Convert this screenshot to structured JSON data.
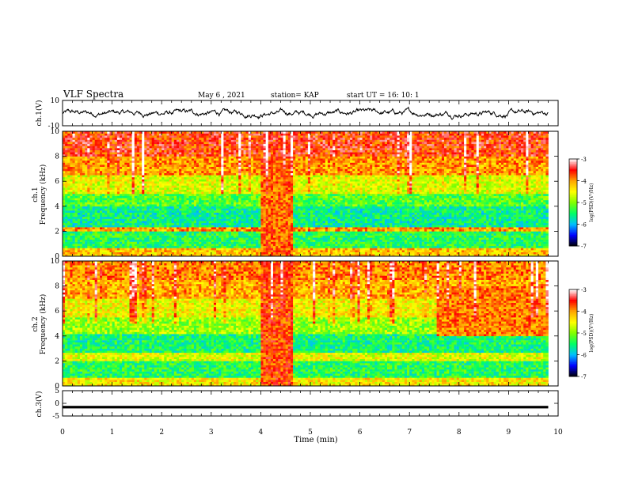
{
  "header": {
    "title": "VLF Spectra",
    "date": "May 6 , 2021",
    "station": "station= KAP",
    "start": "start UT =  16: 10: 1"
  },
  "colorbars": {
    "label": "log(PSD)(V²/Hz)",
    "ticks": [
      "-3",
      "-4",
      "-5",
      "-6",
      "-7"
    ],
    "colors": [
      "#000000",
      "#0000ff",
      "#00bfff",
      "#00ff66",
      "#7fff00",
      "#ffff00",
      "#ffa500",
      "#ff0000",
      "#ffffff"
    ]
  },
  "chart_data": [
    {
      "type": "line",
      "panel": "ch1-waveform",
      "ylabel": "ch.1(V)",
      "ylim": [
        -10,
        10
      ],
      "yticks": [
        "10",
        "-10"
      ],
      "xlim": [
        0,
        10
      ],
      "note_values": "noisy waveform fluctuating roughly between -6 and +6 V"
    },
    {
      "type": "heatmap",
      "panel": "ch1-spectrogram",
      "ylabel": "ch.1 Frequency (kHz)",
      "ylim": [
        0,
        10
      ],
      "yticks": [
        "0",
        "2",
        "4",
        "6",
        "8",
        "10"
      ],
      "xlim": [
        0,
        10
      ],
      "data_end_min": 9.8,
      "zlim": [
        -7,
        -3
      ],
      "bands": [
        {
          "f": [
            0,
            0.6
          ],
          "level": -4.2
        },
        {
          "f": [
            0.6,
            2.0
          ],
          "level": -5.4
        },
        {
          "f": [
            2.0,
            2.4
          ],
          "level": -4.0
        },
        {
          "f": [
            2.4,
            4.0
          ],
          "level": -5.6
        },
        {
          "f": [
            4.0,
            5.0
          ],
          "level": -5.2
        },
        {
          "f": [
            5.0,
            6.5
          ],
          "level": -4.6
        },
        {
          "f": [
            6.5,
            8.0
          ],
          "level": -4.0
        },
        {
          "f": [
            8.0,
            10.0
          ],
          "level": -3.6
        }
      ],
      "events": [
        {
          "t": [
            3.95,
            4.6
          ],
          "level": -3.8
        }
      ]
    },
    {
      "type": "heatmap",
      "panel": "ch2-spectrogram",
      "ylabel": "ch.2 Frequency (kHz)",
      "ylim": [
        0,
        10
      ],
      "yticks": [
        "0",
        "2",
        "4",
        "6",
        "8",
        "10"
      ],
      "xlim": [
        0,
        10
      ],
      "data_end_min": 9.8,
      "zlim": [
        -7,
        -3
      ],
      "bands": [
        {
          "f": [
            0,
            0.6
          ],
          "level": -4.4
        },
        {
          "f": [
            0.6,
            2.0
          ],
          "level": -5.4
        },
        {
          "f": [
            2.0,
            2.6
          ],
          "level": -4.6
        },
        {
          "f": [
            2.6,
            4.2
          ],
          "level": -5.5
        },
        {
          "f": [
            4.2,
            5.5
          ],
          "level": -4.9
        },
        {
          "f": [
            5.5,
            7.0
          ],
          "level": -4.5
        },
        {
          "f": [
            7.0,
            8.5
          ],
          "level": -4.1
        },
        {
          "f": [
            8.5,
            10.0
          ],
          "level": -3.9
        }
      ],
      "events": [
        {
          "t": [
            3.95,
            4.6
          ],
          "level": -3.7
        },
        {
          "t": [
            7.5,
            9.8
          ],
          "f": [
            4.0,
            8.0
          ],
          "level": -3.9
        }
      ]
    },
    {
      "type": "line",
      "panel": "ch3-waveform",
      "ylabel": "ch.3(V)",
      "ylim": [
        -5,
        5
      ],
      "yticks": [
        "5",
        "0",
        "-5"
      ],
      "xlim": [
        0,
        10
      ],
      "xlabel": "Time (min)",
      "xticks": [
        "0",
        "1",
        "2",
        "3",
        "4",
        "5",
        "6",
        "7",
        "8",
        "9",
        "10"
      ],
      "note_values": "thick flat trace near -1.5 V from 0 to 9.8 min"
    }
  ]
}
